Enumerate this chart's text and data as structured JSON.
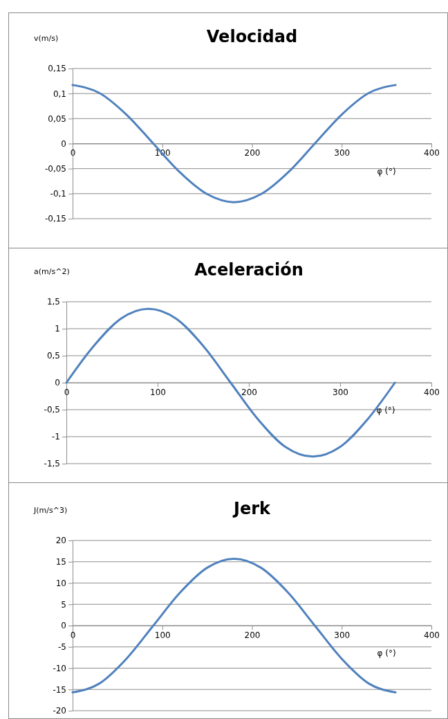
{
  "chart_data": [
    {
      "type": "line",
      "title": "Velocidad",
      "ylabel": "v(m/s)",
      "xlabel": "φ (°)",
      "grid": "y",
      "xlim": [
        0,
        400
      ],
      "xticks": [
        0,
        100,
        200,
        300,
        400
      ],
      "ylim": [
        -0.15,
        0.15
      ],
      "yticks": [
        {
          "value": 0.15,
          "label": "0,15"
        },
        {
          "value": 0.1,
          "label": "0,1"
        },
        {
          "value": 0.05,
          "label": "0,05"
        },
        0,
        {
          "value": -0.05,
          "label": "-0,05"
        },
        {
          "value": -0.1,
          "label": "-0,1"
        },
        {
          "value": -0.15,
          "label": "-0,15"
        }
      ],
      "x": [
        0,
        30,
        60,
        90,
        120,
        150,
        180,
        210,
        240,
        270,
        300,
        330,
        360
      ],
      "series": [
        {
          "color": "#4f81bd",
          "values": [
            0.117,
            0.101,
            0.058,
            0,
            -0.058,
            -0.101,
            -0.117,
            -0.101,
            -0.058,
            0,
            0.058,
            0.101,
            0.117
          ]
        }
      ]
    },
    {
      "type": "line",
      "title": "Aceleración",
      "ylabel": "a(m/s^2)",
      "xlabel": "φ (°)",
      "grid": "y",
      "xlim": [
        0,
        400
      ],
      "xticks": [
        0,
        100,
        200,
        300,
        400
      ],
      "ylim": [
        -1.5,
        1.5
      ],
      "yticks": [
        {
          "value": 1.5,
          "label": "1,5"
        },
        1,
        {
          "value": 0.5,
          "label": "0,5"
        },
        0,
        {
          "value": -0.5,
          "label": "-0,5"
        },
        -1,
        {
          "value": -1.5,
          "label": "-1,5"
        }
      ],
      "x": [
        0,
        30,
        60,
        90,
        120,
        150,
        180,
        210,
        240,
        270,
        300,
        330,
        360
      ],
      "series": [
        {
          "color": "#4f81bd",
          "values": [
            0,
            0.68,
            1.19,
            1.37,
            1.19,
            0.68,
            0,
            -0.68,
            -1.19,
            -1.37,
            -1.19,
            -0.68,
            0
          ]
        }
      ]
    },
    {
      "type": "line",
      "title": "Jerk",
      "ylabel": "J(m/s^3)",
      "xlabel": "φ (°)",
      "grid": "y",
      "xlim": [
        0,
        400
      ],
      "xticks": [
        0,
        100,
        200,
        300,
        400
      ],
      "ylim": [
        -20,
        20
      ],
      "yticks": [
        20,
        15,
        10,
        5,
        0,
        -5,
        -10,
        -15,
        -20
      ],
      "x": [
        0,
        30,
        60,
        90,
        120,
        150,
        180,
        210,
        240,
        270,
        300,
        330,
        360
      ],
      "series": [
        {
          "color": "#4f81bd",
          "values": [
            -15.7,
            -13.6,
            -7.8,
            0,
            7.8,
            13.6,
            15.7,
            13.6,
            7.8,
            0,
            -7.8,
            -13.6,
            -15.7
          ]
        }
      ]
    }
  ]
}
